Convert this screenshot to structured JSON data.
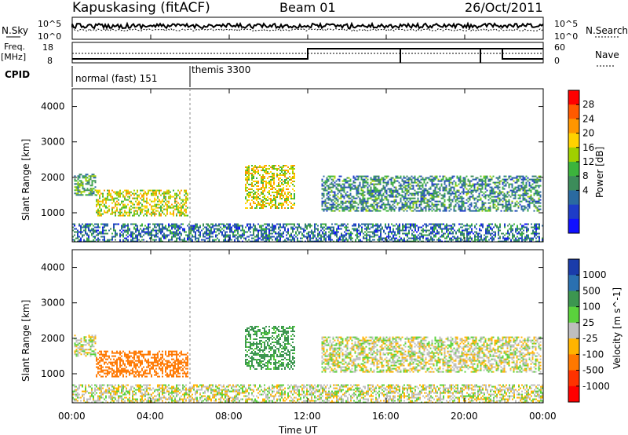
{
  "header": {
    "station": "Kapuskasing (fitACF)",
    "beam": "Beam 01",
    "date": "26/Oct/2011"
  },
  "top_panel": {
    "left_label": "N.Sky",
    "left_ticks": [
      "10^5",
      "10^0"
    ],
    "right_ticks": [
      "10^5",
      "10^0"
    ],
    "right_label": "N.Search",
    "freq_label_1": "Freq.",
    "freq_label_2": "[MHz]",
    "freq_ticks": [
      "18",
      "8"
    ],
    "nave_ticks": [
      "60",
      "0"
    ],
    "nave_label": "Nave",
    "cpid_label": "CPID",
    "cpid_modes": [
      {
        "label": "normal (fast) 151",
        "start_h": 0,
        "end_h": 6
      },
      {
        "label": "themis 3300",
        "start_h": 6,
        "end_h": 24
      }
    ]
  },
  "axes": {
    "ylabel": "Slant Range [km]",
    "yticks": [
      "4000",
      "3000",
      "2000",
      "1000"
    ],
    "xticks": [
      "00:00",
      "04:00",
      "08:00",
      "12:00",
      "16:00",
      "20:00",
      "00:00"
    ],
    "xlabel": "Time UT"
  },
  "power_scale": {
    "label": "Power [dB]",
    "ticks": [
      "28",
      "24",
      "20",
      "16",
      "12",
      "8",
      "4"
    ],
    "colors": [
      "#ff0000",
      "#ff5a00",
      "#ff9600",
      "#ffd200",
      "#a0d000",
      "#3cb43c",
      "#3c8c5a",
      "#2a6aa0",
      "#1e3cc8",
      "#1010ff"
    ]
  },
  "velocity_scale": {
    "label": "Velocity [m s^-1]",
    "ticks": [
      "1000",
      "500",
      "100",
      "25",
      "-25",
      "-100",
      "-500",
      "-1000"
    ],
    "colors": [
      "#1a3caa",
      "#2a70b0",
      "#3c9650",
      "#5ad23c",
      "#bebebe",
      "#ffb400",
      "#ff7800",
      "#ff3200",
      "#ff0000"
    ]
  },
  "chart_data": [
    {
      "type": "heatmap",
      "title": "Power",
      "x_axis": "Time UT",
      "y_axis": "Slant Range [km]",
      "xlim_hours": [
        0,
        24
      ],
      "ylim_km": [
        180,
        4500
      ],
      "colorbar": "Power [dB]",
      "color_range": [
        0,
        30
      ],
      "echo_regions": [
        {
          "t_start": 0.1,
          "t_end": 1.2,
          "r_min": 1500,
          "r_max": 2100,
          "power_db": 12
        },
        {
          "t_start": 1.2,
          "t_end": 5.9,
          "r_min": 900,
          "r_max": 1650,
          "power_db": 18
        },
        {
          "t_start": 8.8,
          "t_end": 11.3,
          "r_min": 1150,
          "r_max": 2350,
          "power_db": 18
        },
        {
          "t_start": 12.7,
          "t_end": 23.9,
          "r_min": 1050,
          "r_max": 2050,
          "power_db": 10
        },
        {
          "t_start": 0.0,
          "t_end": 24.0,
          "r_min": 180,
          "r_max": 700,
          "power_db": 8
        }
      ]
    },
    {
      "type": "heatmap",
      "title": "Velocity",
      "x_axis": "Time UT",
      "y_axis": "Slant Range [km]",
      "xlim_hours": [
        0,
        24
      ],
      "ylim_km": [
        180,
        4500
      ],
      "colorbar": "Velocity [m s^-1]",
      "color_range": [
        -1000,
        1000
      ],
      "echo_regions": [
        {
          "t_start": 0.1,
          "t_end": 1.2,
          "r_min": 1500,
          "r_max": 2100,
          "velocity": 0
        },
        {
          "t_start": 1.2,
          "t_end": 5.9,
          "r_min": 900,
          "r_max": 1650,
          "velocity": -300
        },
        {
          "t_start": 8.8,
          "t_end": 11.3,
          "r_min": 1150,
          "r_max": 2350,
          "velocity": 100
        },
        {
          "t_start": 12.7,
          "t_end": 23.9,
          "r_min": 1050,
          "r_max": 2050,
          "velocity": 0
        },
        {
          "t_start": 0.0,
          "t_end": 24.0,
          "r_min": 180,
          "r_max": 700,
          "velocity": 0
        }
      ]
    }
  ]
}
